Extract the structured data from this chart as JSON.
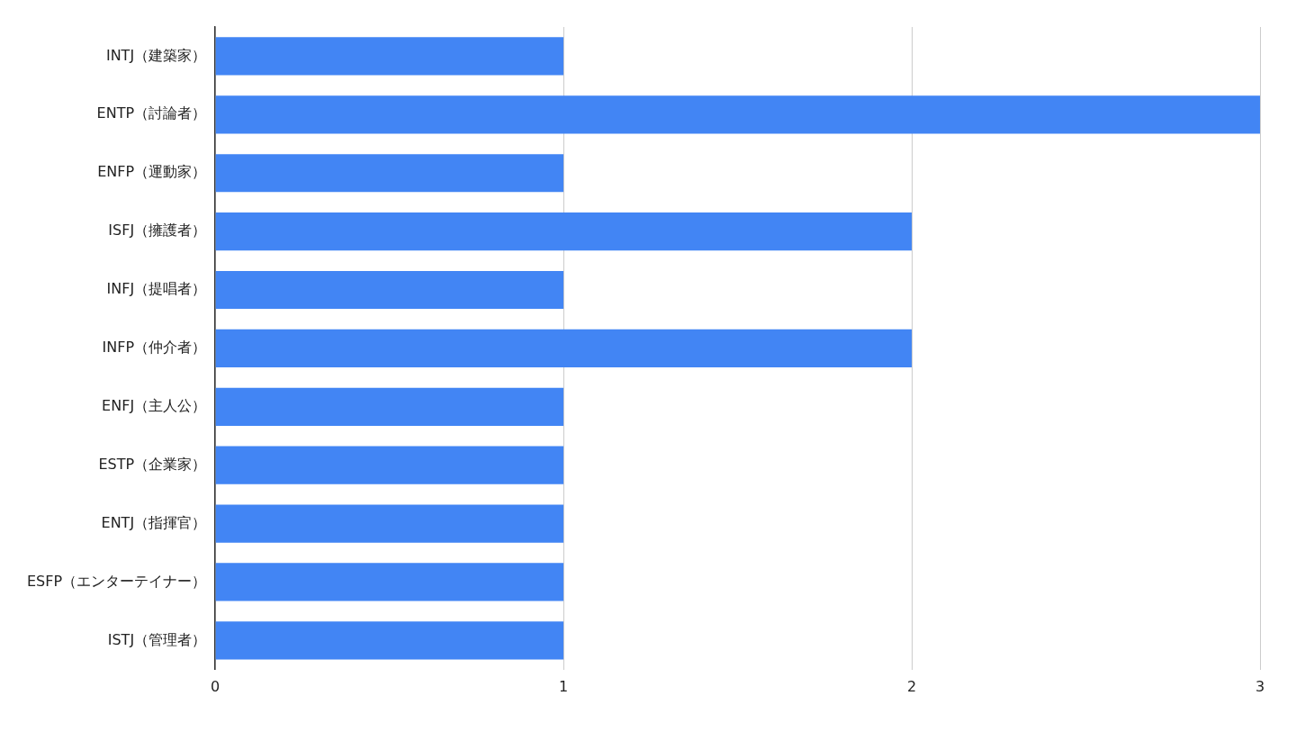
{
  "chart_data": {
    "type": "bar",
    "orientation": "horizontal",
    "categories": [
      "INTJ（建築家）",
      "ENTP（討論者）",
      "ENFP（運動家）",
      "ISFJ（擁護者）",
      "INFJ（提唱者）",
      "INFP（仲介者）",
      "ENFJ（主人公）",
      "ESTP（企業家）",
      "ENTJ（指揮官）",
      "ESFP（エンターテイナー）",
      "ISTJ（管理者）"
    ],
    "values": [
      1,
      3,
      1,
      2,
      1,
      2,
      1,
      1,
      1,
      1,
      1
    ],
    "color": "#4285f4",
    "xlim": [
      0,
      3
    ],
    "xticks": [
      0,
      1,
      2,
      3
    ],
    "grid": "x",
    "legend": false
  }
}
